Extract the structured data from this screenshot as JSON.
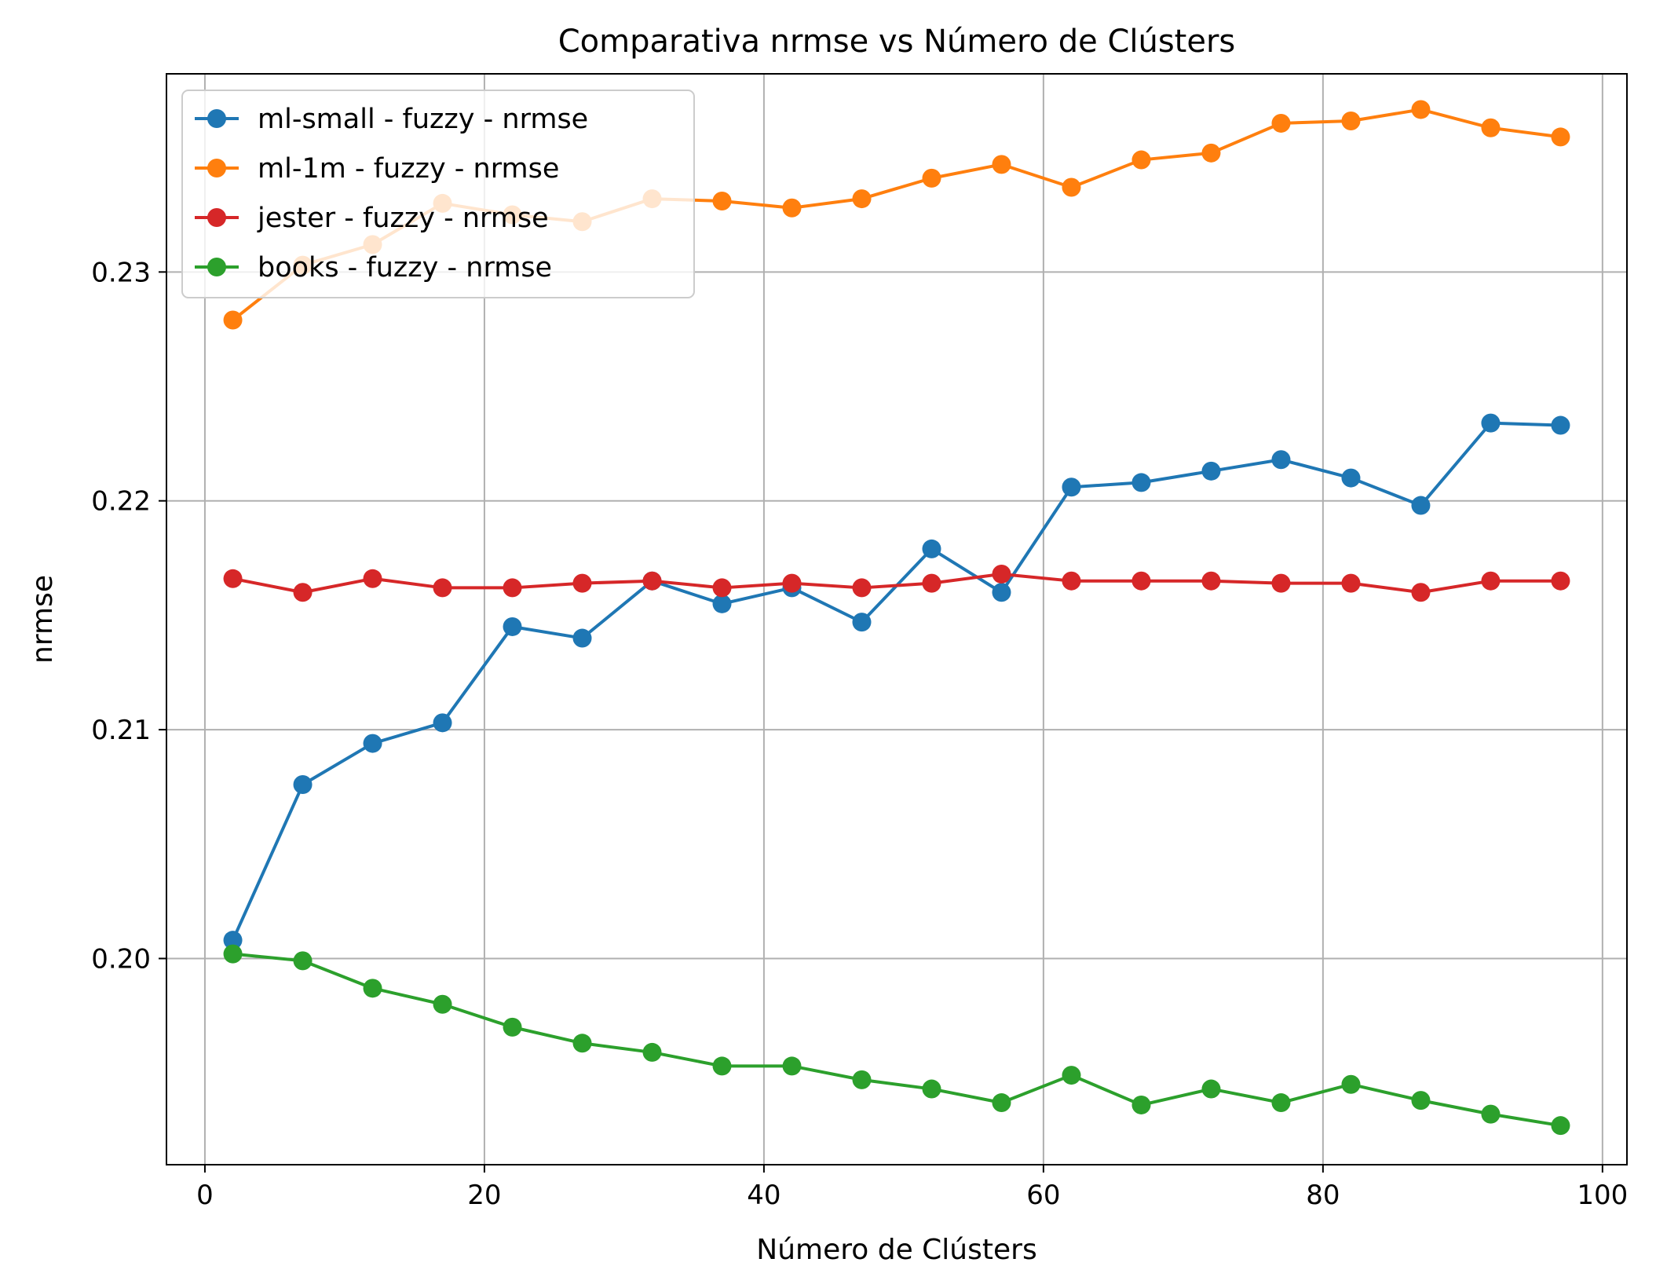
{
  "chart_data": {
    "type": "line",
    "title": "Comparativa nrmse vs Número de Clústers",
    "xlabel": "Número de Clústers",
    "ylabel": "nrmse",
    "xlim": [
      -2.75,
      101.75
    ],
    "ylim": [
      0.19099,
      0.23866
    ],
    "xticks": [
      0,
      20,
      40,
      60,
      80,
      100
    ],
    "xtick_labels": [
      "0",
      "20",
      "40",
      "60",
      "80",
      "100"
    ],
    "yticks": [
      0.2,
      0.21,
      0.22,
      0.23
    ],
    "ytick_labels": [
      "0.20",
      "0.21",
      "0.22",
      "0.23"
    ],
    "grid": true,
    "legend_position": "top-left",
    "x": [
      2,
      7,
      12,
      17,
      22,
      27,
      32,
      37,
      42,
      47,
      52,
      57,
      62,
      67,
      72,
      77,
      82,
      87,
      92,
      97
    ],
    "series": [
      {
        "name": "ml-small - fuzzy - nrmse",
        "color": "#1f77b4",
        "values": [
          0.2008,
          0.2076,
          0.2094,
          0.2103,
          0.2145,
          0.214,
          0.2165,
          0.2155,
          0.2162,
          0.2147,
          0.2179,
          0.216,
          0.2206,
          0.2208,
          0.2213,
          0.2218,
          0.221,
          0.2198,
          0.2234,
          0.2233
        ]
      },
      {
        "name": "ml-1m - fuzzy - nrmse",
        "color": "#ff7f0e",
        "values": [
          0.2279,
          0.2303,
          0.2312,
          0.233,
          0.2325,
          0.2322,
          0.2332,
          0.2331,
          0.2328,
          0.2332,
          0.2341,
          0.2347,
          0.2337,
          0.2349,
          0.2352,
          0.2365,
          0.2366,
          0.2371,
          0.2363,
          0.2359
        ]
      },
      {
        "name": "jester - fuzzy - nrmse",
        "color": "#d62728",
        "values": [
          0.2166,
          0.216,
          0.2166,
          0.2162,
          0.2162,
          0.2164,
          0.2165,
          0.2162,
          0.2164,
          0.2162,
          0.2164,
          0.2168,
          0.2165,
          0.2165,
          0.2165,
          0.2164,
          0.2164,
          0.216,
          0.2165,
          0.2165
        ]
      },
      {
        "name": "books - fuzzy - nrmse",
        "color": "#2ca02c",
        "values": [
          0.2002,
          0.1999,
          0.1987,
          0.198,
          0.197,
          0.1963,
          0.1959,
          0.1953,
          0.1953,
          0.1947,
          0.1943,
          0.1937,
          0.1949,
          0.1936,
          0.1943,
          0.1937,
          0.1945,
          0.1938,
          0.1932,
          0.1927
        ]
      }
    ]
  }
}
